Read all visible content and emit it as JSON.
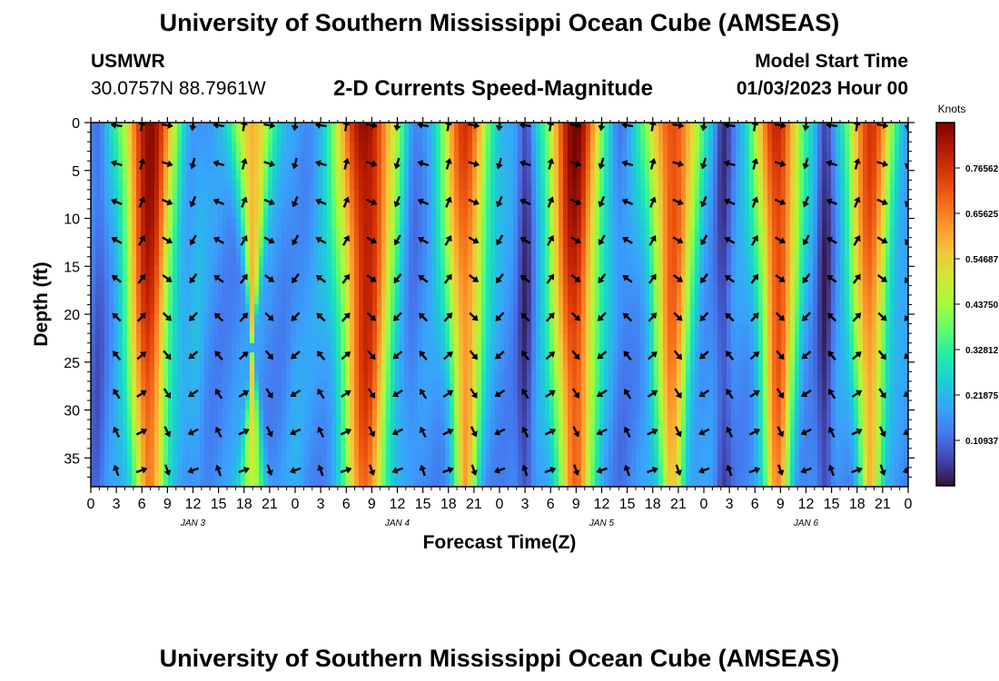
{
  "header": {
    "title": "University of Southern Mississippi Ocean Cube (AMSEAS)",
    "station": "USMWR",
    "coordinates": "30.0757N  88.7961W",
    "subtitle": "2-D Currents Speed-Magnitude",
    "model_start_label": "Model Start Time",
    "model_start_value": "01/03/2023 Hour 00"
  },
  "footer": {
    "title": "University of Southern Mississippi Ocean Cube (AMSEAS)"
  },
  "chart_data": {
    "type": "heatmap",
    "title": "2-D Currents Speed-Magnitude",
    "xlabel": "Forecast Time(Z)",
    "ylabel": "Depth (ft)",
    "xlim": [
      0,
      96
    ],
    "ylim": [
      38,
      0
    ],
    "x_ticks": [
      0,
      3,
      6,
      9,
      12,
      15,
      18,
      21,
      24,
      27,
      30,
      33,
      36,
      39,
      42,
      45,
      48,
      51,
      54,
      57,
      60,
      63,
      66,
      69,
      72,
      75,
      78,
      81,
      84,
      87,
      90,
      93,
      96
    ],
    "x_tick_labels": [
      "0",
      "3",
      "6",
      "9",
      "12",
      "15",
      "18",
      "21",
      "0",
      "3",
      "6",
      "9",
      "12",
      "15",
      "18",
      "21",
      "0",
      "3",
      "6",
      "9",
      "12",
      "15",
      "18",
      "21",
      "0",
      "3",
      "6",
      "9",
      "12",
      "15",
      "18",
      "21",
      "0"
    ],
    "y_ticks": [
      0,
      5,
      10,
      15,
      20,
      25,
      30,
      35
    ],
    "y_tick_labels": [
      "0",
      "5",
      "10",
      "15",
      "20",
      "25",
      "30",
      "35"
    ],
    "day_labels": [
      {
        "text": "JAN 3",
        "x": 12
      },
      {
        "text": "JAN 4",
        "x": 36
      },
      {
        "text": "JAN 5",
        "x": 60
      },
      {
        "text": "JAN 6",
        "x": 84
      }
    ],
    "colorbar": {
      "units": "Knots",
      "min": 0.0,
      "max": 0.875,
      "tick_values": [
        0.76562,
        0.65625,
        0.54687,
        0.4375,
        0.32812,
        0.21875,
        0.10937
      ],
      "tick_labels": [
        "0.76562",
        "0.65625",
        "0.54687",
        "0.43750",
        "0.32812",
        "0.21875",
        "0.10937"
      ]
    },
    "speed_peaks": [
      {
        "t": 6.8,
        "s": 0.86,
        "w": 3.2,
        "decay": 0.45
      },
      {
        "t": 19.0,
        "s": 0.62,
        "w": 2.4,
        "decay": 1.7
      },
      {
        "t": 32.3,
        "s": 0.87,
        "w": 3.6,
        "decay": 0.35
      },
      {
        "t": 44.0,
        "s": 0.74,
        "w": 3.0,
        "decay": 0.6
      },
      {
        "t": 56.8,
        "s": 0.86,
        "w": 3.3,
        "decay": 0.4
      },
      {
        "t": 68.3,
        "s": 0.75,
        "w": 3.2,
        "decay": 0.6
      },
      {
        "t": 80.7,
        "s": 0.8,
        "w": 2.8,
        "decay": 0.5
      },
      {
        "t": 91.5,
        "s": 0.74,
        "w": 2.9,
        "decay": 0.6
      }
    ],
    "speed_troughs": [
      {
        "t": 0.8,
        "s": 0.1
      },
      {
        "t": 12.5,
        "s": 0.2
      },
      {
        "t": 24.0,
        "s": 0.18
      },
      {
        "t": 38.0,
        "s": 0.14
      },
      {
        "t": 51.0,
        "s": 0.05
      },
      {
        "t": 62.3,
        "s": 0.14
      },
      {
        "t": 74.3,
        "s": 0.06
      },
      {
        "t": 86.2,
        "s": 0.04
      }
    ],
    "vector_times": [
      3,
      6,
      9,
      12,
      15,
      18,
      21,
      24,
      27,
      30,
      33,
      36,
      39,
      42,
      45,
      48,
      51,
      54,
      57,
      60,
      63,
      66,
      69,
      72,
      75,
      78,
      81,
      84,
      87,
      90,
      93,
      96
    ],
    "vector_depths": [
      0,
      4,
      8,
      12,
      16,
      20,
      24,
      28,
      32,
      36
    ]
  }
}
